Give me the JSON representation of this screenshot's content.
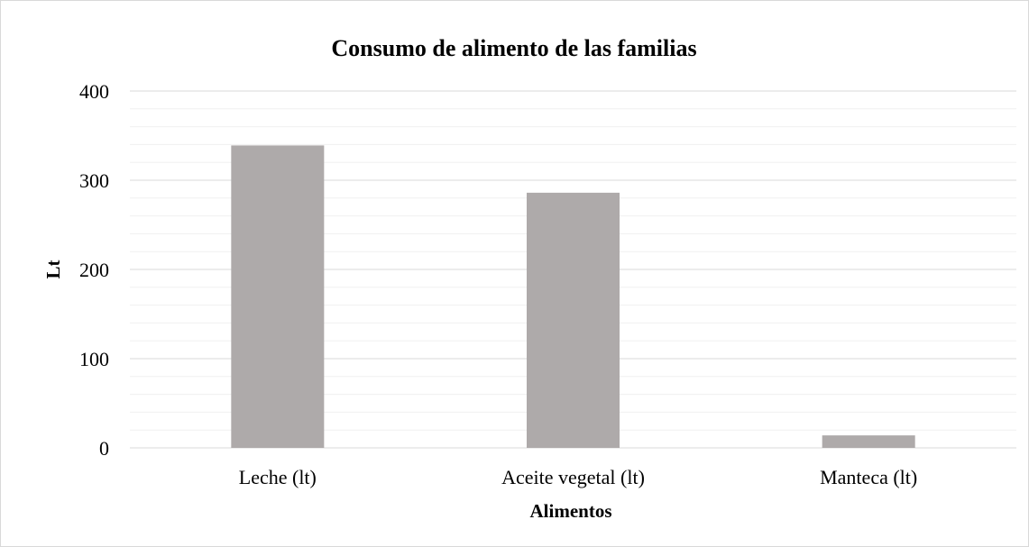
{
  "chart_data": {
    "type": "bar",
    "title": "Consumo de alimento de las familias",
    "xlabel": "Alimentos",
    "ylabel": "Lt",
    "categories": [
      "Leche (lt)",
      "Aceite vegetal (lt)",
      "Manteca (lt)"
    ],
    "values": [
      339,
      286,
      14
    ],
    "ylim": [
      0,
      400
    ],
    "yticks": [
      "0",
      "100",
      "200",
      "300",
      "400"
    ],
    "grid": true,
    "legend": "none",
    "bar_color": "#aeaaaa",
    "grid_color": "#d9d9d9",
    "minor_grid_color": "#f0f0f0"
  }
}
